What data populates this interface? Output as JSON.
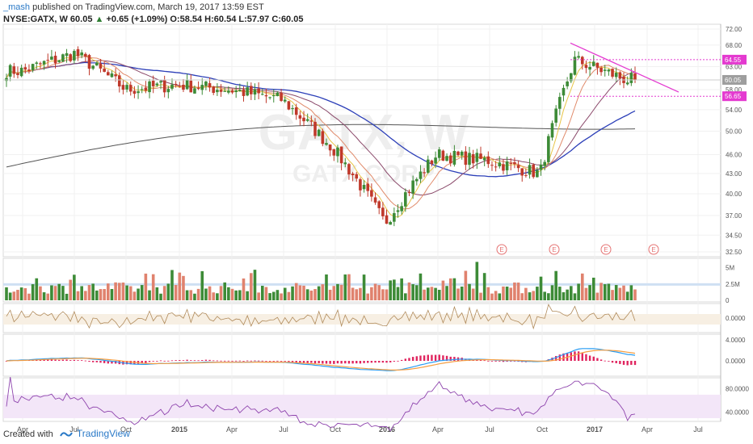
{
  "header": {
    "author": "_mash",
    "published_text": "published on TradingView.com, March 19, 2017 13:59 EST",
    "symbol": "NYSE:GATX, W",
    "last": "60.05",
    "change": "+0.65 (+1.09%)",
    "ohlc": "O:58.54 H:60.54 L:57.97 C:60.05"
  },
  "watermark": {
    "ticker": "GATX, W",
    "name": "GATX CORP"
  },
  "footer": {
    "created_with": "Created with",
    "brand": "TradingView"
  },
  "colors": {
    "up": "#3d8b37",
    "down": "#c0392b",
    "vol_up": "#3d8b37",
    "vol_down": "#e0826e",
    "ma_blue": "#2c3fb8",
    "ma_long": "#555555",
    "ma_fast": "#e8c547",
    "ma_mid": "#e08a6a",
    "ma_purple": "#8b4a6b",
    "trendline": "#e43ad0",
    "macd": "#2a9df4",
    "signal": "#f59e42",
    "hist": "#e0245e",
    "rsi": "#8e44ad",
    "cci": "#b08a5a"
  },
  "chart_data": [
    {
      "type": "candlestick",
      "panel": "price",
      "note": "weekly candles, visually estimated",
      "x_ticks": [
        "Apr",
        "Jul",
        "Oct",
        "2015",
        "Apr",
        "Jul",
        "Oct",
        "2016",
        "Apr",
        "Jul",
        "Oct",
        "2017",
        "Apr",
        "Jul"
      ],
      "y_ticks": [
        "72.00",
        "68.00",
        "63.00",
        "58.00",
        "54.00",
        "50.00",
        "46.00",
        "43.00",
        "40.00",
        "37.00",
        "34.50",
        "32.50"
      ],
      "ylim": [
        32.5,
        72
      ],
      "y_scale": "log",
      "price_labels": [
        {
          "value": 64.55,
          "text": "64.55",
          "style": "magenta"
        },
        {
          "value": 60.05,
          "text": "60.05",
          "style": "grey"
        },
        {
          "value": 56.65,
          "text": "56.65",
          "style": "magenta"
        }
      ],
      "earnings_markers": [
        "E",
        "E",
        "E",
        "E"
      ],
      "key_points": [
        {
          "date": "2014-04",
          "close": 62
        },
        {
          "date": "2014-07",
          "close": 66
        },
        {
          "date": "2014-10",
          "close": 58
        },
        {
          "date": "2015-01",
          "close": 59
        },
        {
          "date": "2015-04",
          "close": 58
        },
        {
          "date": "2015-07",
          "close": 56
        },
        {
          "date": "2015-10",
          "close": 47
        },
        {
          "date": "2016-01",
          "close": 36
        },
        {
          "date": "2016-04",
          "close": 46
        },
        {
          "date": "2016-07",
          "close": 45
        },
        {
          "date": "2016-10",
          "close": 43
        },
        {
          "date": "2016-12",
          "close": 64.5
        },
        {
          "date": "2017-03",
          "close": 60.05
        }
      ]
    },
    {
      "type": "bar",
      "panel": "volume",
      "y_ticks": [
        "5M",
        "2.5M",
        "0"
      ]
    },
    {
      "type": "line",
      "panel": "oscillator",
      "y_ticks": [
        "0.0000"
      ]
    },
    {
      "type": "line",
      "panel": "macd",
      "series": [
        {
          "name": ""
        },
        {
          "name": ""
        }
      ],
      "y_ticks": [
        "4.0000",
        "0.0000"
      ]
    },
    {
      "type": "line",
      "panel": "rsi",
      "y_ticks": [
        "80.0000",
        "40.0000"
      ]
    }
  ]
}
